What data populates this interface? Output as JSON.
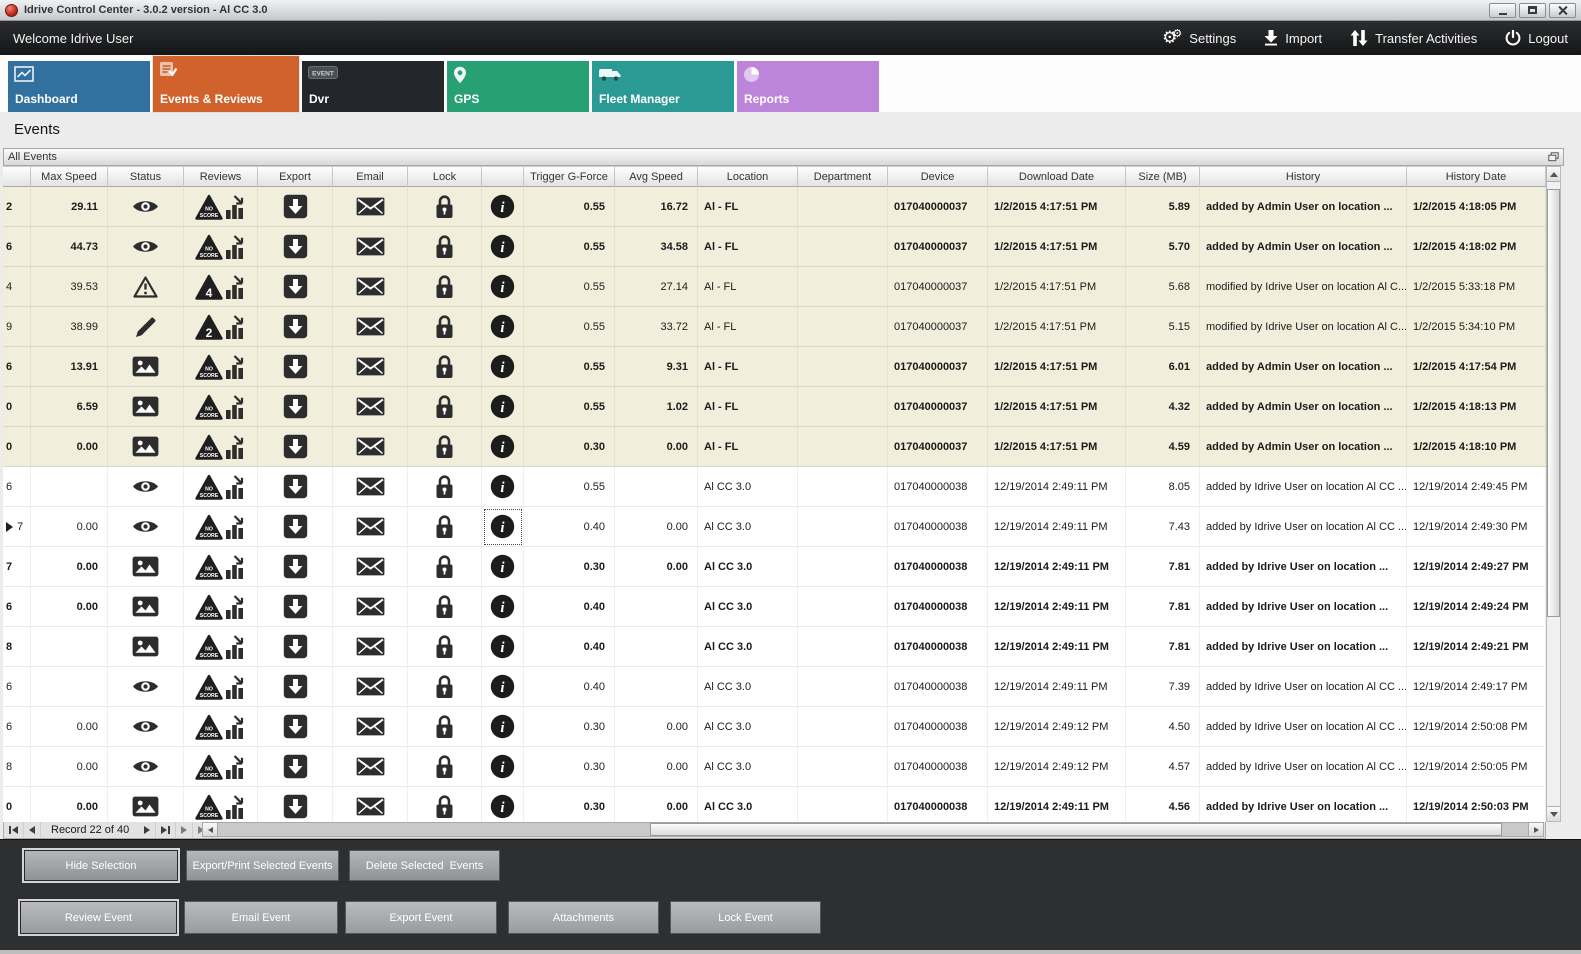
{
  "window": {
    "title": "Idrive Control Center - 3.0.2 version - Al CC 3.0"
  },
  "topbar": {
    "welcome": "Welcome Idrive User",
    "actions": [
      {
        "label": "Settings",
        "icon": "settings-gears"
      },
      {
        "label": "Import",
        "icon": "import"
      },
      {
        "label": "Transfer Activities",
        "icon": "transfer"
      },
      {
        "label": "Logout",
        "icon": "power"
      }
    ]
  },
  "tabs": [
    {
      "label": "Dashboard",
      "icon": "dashboard",
      "color": "#32709f",
      "active": false
    },
    {
      "label": "Events & Reviews",
      "icon": "events",
      "color": "#d2622b",
      "active": true
    },
    {
      "label": "Dvr",
      "icon": "dvr",
      "color": "#23272c",
      "active": false
    },
    {
      "label": "GPS",
      "icon": "gps",
      "color": "#27a076",
      "active": false
    },
    {
      "label": "Fleet Manager",
      "icon": "fleet",
      "color": "#2b9a95",
      "active": false
    },
    {
      "label": "Reports",
      "icon": "reports",
      "color": "#bd85da",
      "active": false
    }
  ],
  "page_title": "Events",
  "panel": {
    "title": "All Events"
  },
  "colors": {
    "row_highlight": "#f1efdc",
    "topbar_bg": "#1d1d1d",
    "footer_bg": "#2e2f31",
    "active_tab": "#d2622b"
  },
  "table": {
    "columns": [
      "",
      "Max Speed",
      "Status",
      "Reviews",
      "Export",
      "Email",
      "Lock",
      "",
      "Trigger G-Force",
      "Avg Speed",
      "Location",
      "Department",
      "Device",
      "Download Date",
      "Size (MB)",
      "History",
      "History Date"
    ],
    "rows": [
      {
        "edge": "2",
        "marker": false,
        "selected": false,
        "bold": true,
        "beige": true,
        "max_speed": "29.11",
        "status": "eye",
        "badge": "NO SCORE",
        "trigger": "0.55",
        "avg_speed": "16.72",
        "location": "Al - FL",
        "department": "",
        "device": "017040000037",
        "download_date": "1/2/2015 4:17:51 PM",
        "size": "5.89",
        "history": "added by Admin User on location ...",
        "history_date": "1/2/2015 4:18:05 PM"
      },
      {
        "edge": "6",
        "marker": false,
        "selected": false,
        "bold": true,
        "beige": true,
        "max_speed": "44.73",
        "status": "eye",
        "badge": "NO SCORE",
        "trigger": "0.55",
        "avg_speed": "34.58",
        "location": "Al - FL",
        "department": "",
        "device": "017040000037",
        "download_date": "1/2/2015 4:17:51 PM",
        "size": "5.70",
        "history": "added by Admin User on location ...",
        "history_date": "1/2/2015 4:18:02 PM"
      },
      {
        "edge": "4",
        "marker": false,
        "selected": false,
        "bold": false,
        "beige": true,
        "max_speed": "39.53",
        "status": "warning",
        "badge": "4",
        "trigger": "0.55",
        "avg_speed": "27.14",
        "location": "Al - FL",
        "department": "",
        "device": "017040000037",
        "download_date": "1/2/2015 4:17:51 PM",
        "size": "5.68",
        "history": "modified by Idrive User on location Al C...",
        "history_date": "1/2/2015 5:33:18 PM"
      },
      {
        "edge": "9",
        "marker": false,
        "selected": false,
        "bold": false,
        "beige": true,
        "max_speed": "38.99",
        "status": "pencil",
        "badge": "2",
        "trigger": "0.55",
        "avg_speed": "33.72",
        "location": "Al - FL",
        "department": "",
        "device": "017040000037",
        "download_date": "1/2/2015 4:17:51 PM",
        "size": "5.15",
        "history": "modified by Idrive User on location Al C...",
        "history_date": "1/2/2015 5:34:10 PM"
      },
      {
        "edge": "6",
        "marker": false,
        "selected": false,
        "bold": true,
        "beige": true,
        "max_speed": "13.91",
        "status": "image",
        "badge": "NO SCORE",
        "trigger": "0.55",
        "avg_speed": "9.31",
        "location": "Al - FL",
        "department": "",
        "device": "017040000037",
        "download_date": "1/2/2015 4:17:51 PM",
        "size": "6.01",
        "history": "added by Admin User on location ...",
        "history_date": "1/2/2015 4:17:54 PM"
      },
      {
        "edge": "0",
        "marker": false,
        "selected": false,
        "bold": true,
        "beige": true,
        "max_speed": "6.59",
        "status": "image",
        "badge": "NO SCORE",
        "trigger": "0.55",
        "avg_speed": "1.02",
        "location": "Al - FL",
        "department": "",
        "device": "017040000037",
        "download_date": "1/2/2015 4:17:51 PM",
        "size": "4.32",
        "history": "added by Admin User on location ...",
        "history_date": "1/2/2015 4:18:13 PM"
      },
      {
        "edge": "0",
        "marker": false,
        "selected": false,
        "bold": true,
        "beige": true,
        "max_speed": "0.00",
        "status": "image",
        "badge": "NO SCORE",
        "trigger": "0.30",
        "avg_speed": "0.00",
        "location": "Al - FL",
        "department": "",
        "device": "017040000037",
        "download_date": "1/2/2015 4:17:51 PM",
        "size": "4.59",
        "history": "added by Admin User on location ...",
        "history_date": "1/2/2015 4:18:10 PM"
      },
      {
        "edge": "6",
        "marker": false,
        "selected": false,
        "bold": false,
        "beige": false,
        "max_speed": "",
        "status": "eye",
        "badge": "NO SCORE",
        "trigger": "0.55",
        "avg_speed": "",
        "location": "Al CC 3.0",
        "department": "",
        "device": "017040000038",
        "download_date": "12/19/2014 2:49:11 PM",
        "size": "8.05",
        "history": "added by Idrive User on location Al CC ...",
        "history_date": "12/19/2014 2:49:45 PM"
      },
      {
        "edge": "7",
        "marker": true,
        "selected": true,
        "bold": false,
        "beige": false,
        "max_speed": "0.00",
        "status": "eye",
        "badge": "NO SCORE",
        "trigger": "0.40",
        "avg_speed": "0.00",
        "location": "Al CC 3.0",
        "department": "",
        "device": "017040000038",
        "download_date": "12/19/2014 2:49:11 PM",
        "size": "7.43",
        "history": "added by Idrive User on location Al CC ...",
        "history_date": "12/19/2014 2:49:30 PM"
      },
      {
        "edge": "7",
        "marker": false,
        "selected": false,
        "bold": true,
        "beige": false,
        "max_speed": "0.00",
        "status": "image",
        "badge": "NO SCORE",
        "trigger": "0.30",
        "avg_speed": "0.00",
        "location": "Al CC 3.0",
        "department": "",
        "device": "017040000038",
        "download_date": "12/19/2014 2:49:11 PM",
        "size": "7.81",
        "history": "added by Idrive User on location ...",
        "history_date": "12/19/2014 2:49:27 PM"
      },
      {
        "edge": "6",
        "marker": false,
        "selected": false,
        "bold": true,
        "beige": false,
        "max_speed": "0.00",
        "status": "image",
        "badge": "NO SCORE",
        "trigger": "0.40",
        "avg_speed": "",
        "location": "Al CC 3.0",
        "department": "",
        "device": "017040000038",
        "download_date": "12/19/2014 2:49:11 PM",
        "size": "7.81",
        "history": "added by Idrive User on location ...",
        "history_date": "12/19/2014 2:49:24 PM"
      },
      {
        "edge": "8",
        "marker": false,
        "selected": false,
        "bold": true,
        "beige": false,
        "max_speed": "",
        "status": "image",
        "badge": "NO SCORE",
        "trigger": "0.40",
        "avg_speed": "",
        "location": "Al CC 3.0",
        "department": "",
        "device": "017040000038",
        "download_date": "12/19/2014 2:49:11 PM",
        "size": "7.81",
        "history": "added by Idrive User on location ...",
        "history_date": "12/19/2014 2:49:21 PM"
      },
      {
        "edge": "6",
        "marker": false,
        "selected": false,
        "bold": false,
        "beige": false,
        "max_speed": "",
        "status": "eye",
        "badge": "NO SCORE",
        "trigger": "0.40",
        "avg_speed": "",
        "location": "Al CC 3.0",
        "department": "",
        "device": "017040000038",
        "download_date": "12/19/2014 2:49:11 PM",
        "size": "7.39",
        "history": "added by Idrive User on location Al CC ...",
        "history_date": "12/19/2014 2:49:17 PM"
      },
      {
        "edge": "6",
        "marker": false,
        "selected": false,
        "bold": false,
        "beige": false,
        "max_speed": "0.00",
        "status": "eye",
        "badge": "NO SCORE",
        "trigger": "0.30",
        "avg_speed": "0.00",
        "location": "Al CC 3.0",
        "department": "",
        "device": "017040000038",
        "download_date": "12/19/2014 2:49:12 PM",
        "size": "4.50",
        "history": "added by Idrive User on location Al CC ...",
        "history_date": "12/19/2014 2:50:08 PM"
      },
      {
        "edge": "8",
        "marker": false,
        "selected": false,
        "bold": false,
        "beige": false,
        "max_speed": "0.00",
        "status": "eye",
        "badge": "NO SCORE",
        "trigger": "0.30",
        "avg_speed": "0.00",
        "location": "Al CC 3.0",
        "department": "",
        "device": "017040000038",
        "download_date": "12/19/2014 2:49:12 PM",
        "size": "4.57",
        "history": "added by Idrive User on location Al CC ...",
        "history_date": "12/19/2014 2:50:05 PM"
      },
      {
        "edge": "0",
        "marker": false,
        "selected": false,
        "bold": true,
        "beige": false,
        "max_speed": "0.00",
        "status": "image",
        "badge": "NO SCORE",
        "trigger": "0.30",
        "avg_speed": "0.00",
        "location": "Al CC 3.0",
        "department": "",
        "device": "017040000038",
        "download_date": "12/19/2014 2:49:11 PM",
        "size": "4.56",
        "history": "added by Idrive User on location ...",
        "history_date": "12/19/2014 2:50:03 PM"
      }
    ]
  },
  "record_nav": {
    "label": "Record 22 of 40"
  },
  "footer": {
    "row1": [
      {
        "label": "Hide Selection",
        "focused": true
      },
      {
        "label": "Export/Print Selected Events",
        "focused": false
      },
      {
        "label": "Delete Selected  Events",
        "focused": false
      }
    ],
    "row2": [
      {
        "label": "Review Event",
        "focused": true
      },
      {
        "label": "Email Event",
        "focused": false
      },
      {
        "label": "Export Event",
        "focused": false
      },
      {
        "label": "Attachments",
        "focused": false
      },
      {
        "label": "Lock Event",
        "focused": false
      }
    ]
  }
}
